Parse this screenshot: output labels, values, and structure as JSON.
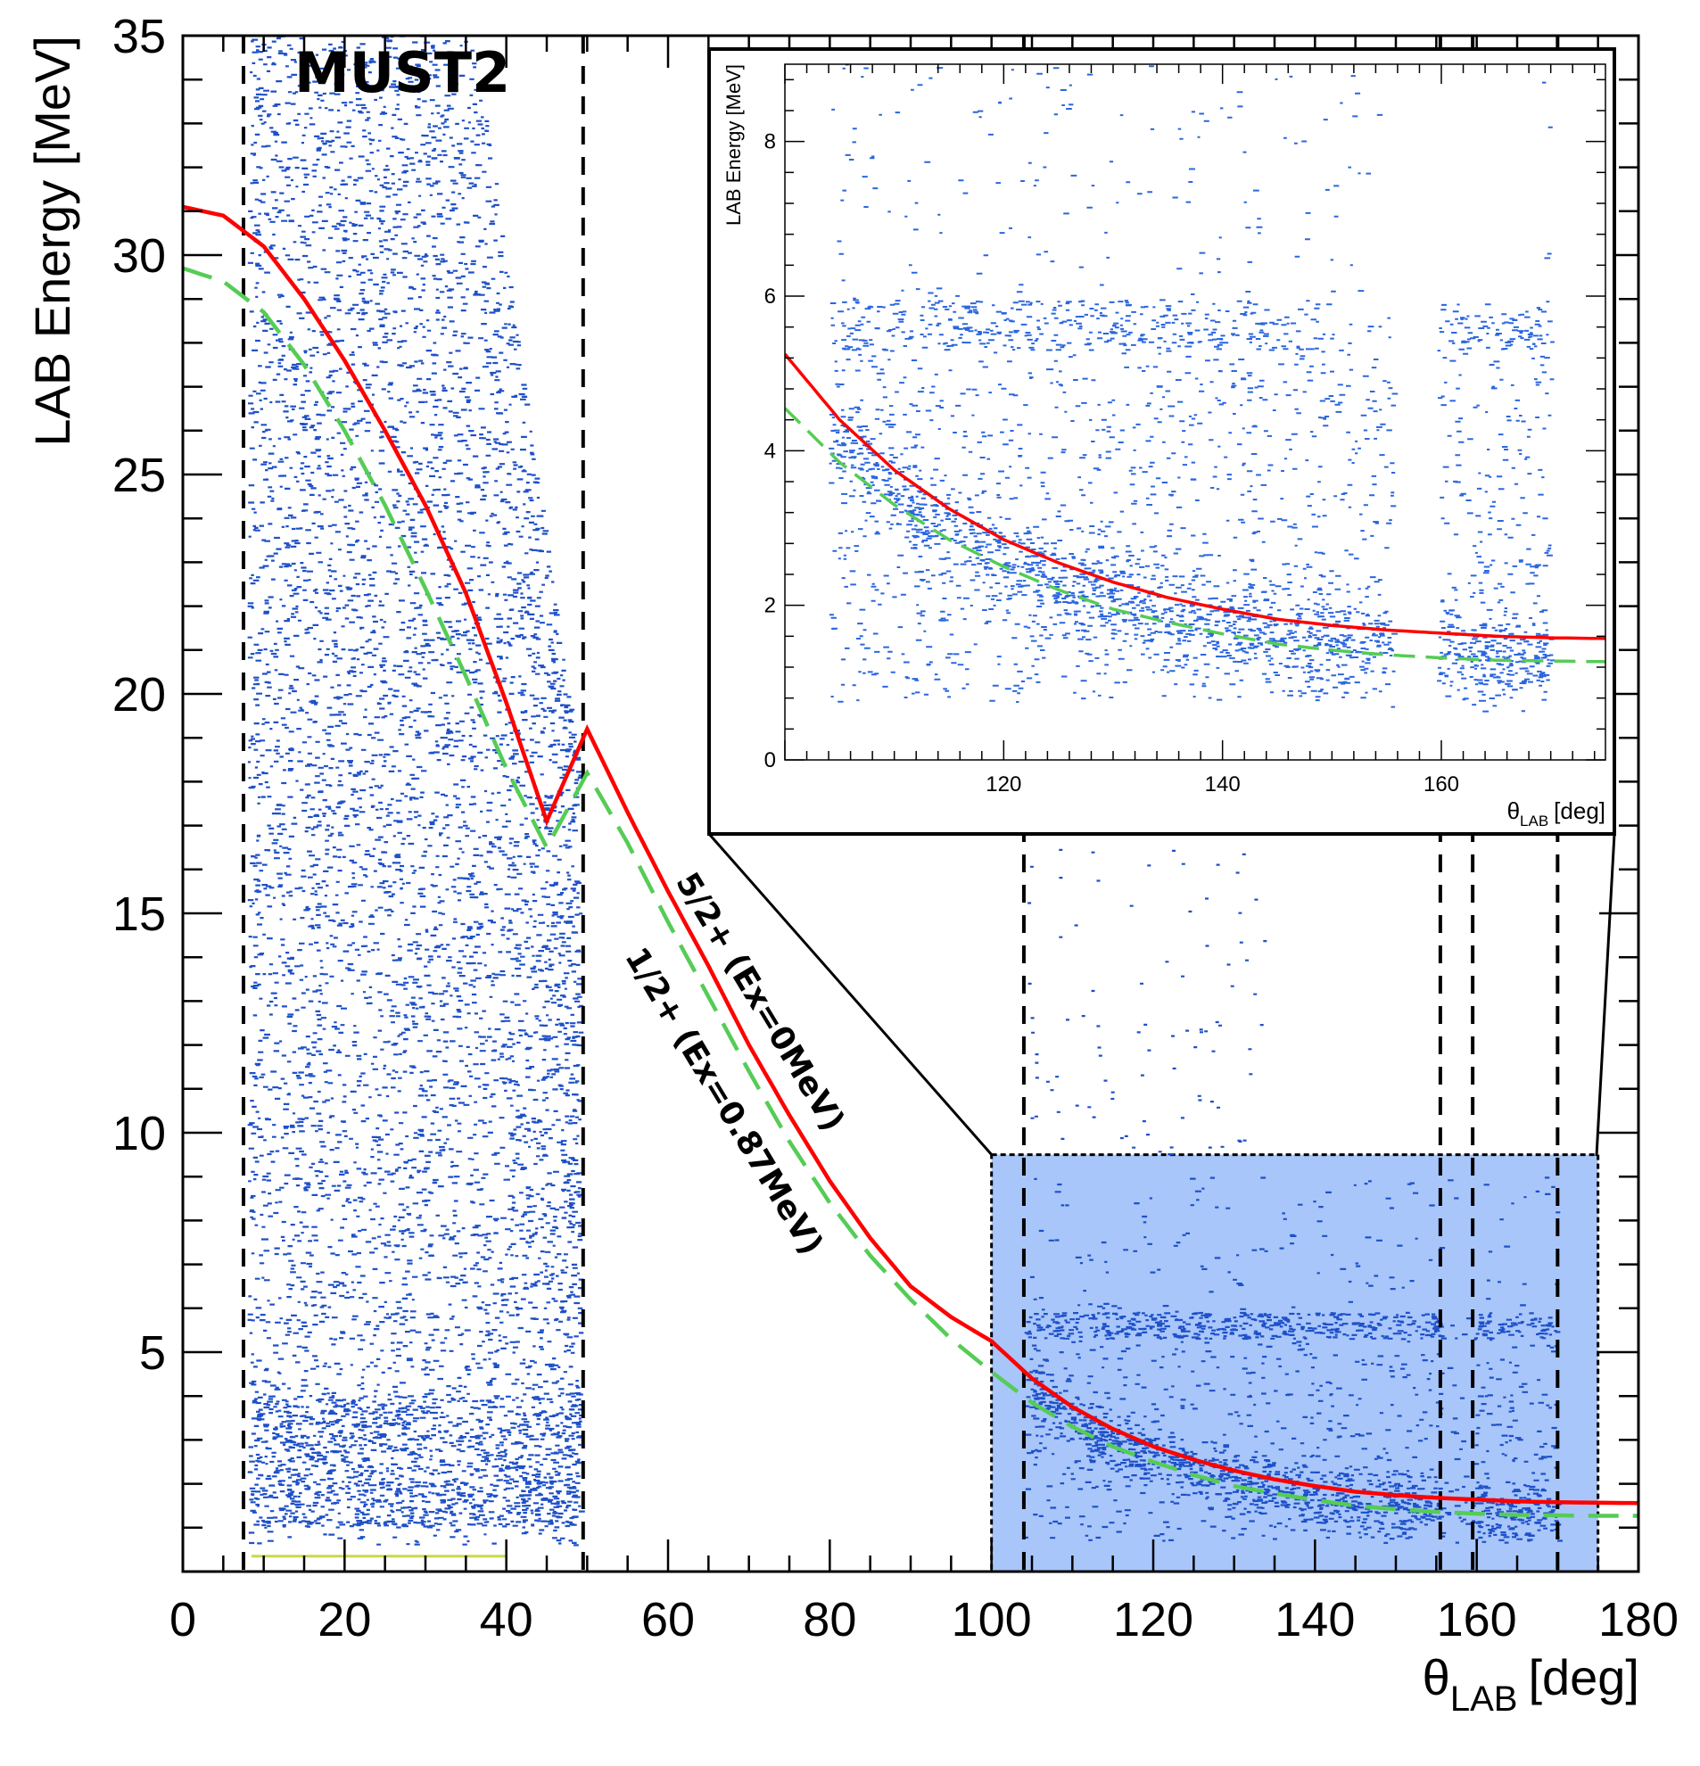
{
  "chart_data": [
    {
      "type": "scatter",
      "subtype": "2d-histogram",
      "title": "",
      "label": "MUST2",
      "xlabel": "θLAB [deg]",
      "xlabel_main": "θ",
      "xlabel_sub": "LAB",
      "xlabel_unit": "[deg]",
      "ylabel": "LAB Energy [MeV]",
      "xlim": [
        0,
        180
      ],
      "ylim": [
        0,
        35
      ],
      "xticks": [
        0,
        20,
        40,
        60,
        80,
        100,
        120,
        140,
        160,
        180
      ],
      "yticks": [
        5,
        10,
        15,
        20,
        25,
        30,
        35
      ],
      "xtick_labels": [
        "0",
        "20",
        "40",
        "60",
        "80",
        "100",
        "120",
        "140",
        "160",
        "180"
      ],
      "ytick_labels": [
        "5",
        "10",
        "15",
        "20",
        "25",
        "30",
        "35"
      ],
      "grid": false,
      "point_color": "#1e50c8",
      "curves": [
        {
          "name": "5/2+ (Ex=0MeV)",
          "color": "#ff0000",
          "style": "solid",
          "x": [
            0,
            5,
            10,
            15,
            20,
            25,
            30,
            35,
            40,
            45,
            50,
            55,
            60,
            65,
            70,
            75,
            80,
            85,
            90,
            95,
            100,
            105,
            110,
            115,
            120,
            125,
            130,
            135,
            140,
            145,
            150,
            155,
            160,
            165,
            170,
            175,
            180
          ],
          "y": [
            31.1,
            30.9,
            30.2,
            29.0,
            27.6,
            26.0,
            24.3,
            22.3,
            19.8,
            17.1,
            19.2,
            17.3,
            15.5,
            13.8,
            12.0,
            10.4,
            8.9,
            7.6,
            6.5,
            5.8,
            5.25,
            4.4,
            3.75,
            3.25,
            2.85,
            2.55,
            2.3,
            2.1,
            1.95,
            1.82,
            1.74,
            1.68,
            1.64,
            1.6,
            1.58,
            1.57,
            1.56
          ]
        },
        {
          "name": "1/2+ (Ex=0.87MeV)",
          "color": "#55cc55",
          "style": "dashed",
          "x": [
            0,
            5,
            10,
            15,
            20,
            25,
            30,
            35,
            40,
            45,
            50,
            55,
            60,
            65,
            70,
            75,
            80,
            85,
            90,
            95,
            100,
            105,
            110,
            115,
            120,
            125,
            130,
            135,
            140,
            145,
            150,
            155,
            160,
            165,
            170,
            175,
            180
          ],
          "y": [
            29.7,
            29.4,
            28.7,
            27.5,
            26.0,
            24.3,
            22.4,
            20.4,
            18.3,
            16.5,
            18.2,
            16.6,
            14.8,
            13.1,
            11.4,
            9.8,
            8.4,
            7.2,
            6.2,
            5.3,
            4.55,
            3.85,
            3.3,
            2.85,
            2.5,
            2.2,
            1.95,
            1.78,
            1.63,
            1.5,
            1.42,
            1.36,
            1.32,
            1.29,
            1.28,
            1.27,
            1.27
          ]
        }
      ],
      "vertical_lines_x": [
        7.5,
        49.5,
        104,
        155.5,
        159.5,
        170
      ],
      "highlight_box": {
        "x": [
          100,
          175
        ],
        "y": [
          0,
          9.5
        ],
        "color": "#a8c6fa"
      },
      "annotations": [
        "5/2+ (Ex=0MeV)",
        "1/2+ (Ex=0.87MeV)"
      ]
    },
    {
      "type": "scatter",
      "subtype": "2d-histogram-inset",
      "title": "",
      "xlabel": "θLAB [deg]",
      "xlabel_main": "θ",
      "xlabel_sub": "LAB",
      "xlabel_unit": "[deg]",
      "ylabel": "LAB Energy [MeV]",
      "xlim": [
        100,
        175
      ],
      "ylim": [
        0,
        9
      ],
      "xticks": [
        120,
        140,
        160
      ],
      "yticks": [
        0,
        2,
        4,
        6,
        8
      ],
      "xtick_labels": [
        "120",
        "140",
        "160"
      ],
      "ytick_labels": [
        "0",
        "2",
        "4",
        "6",
        "8"
      ],
      "grid": false,
      "point_color": "#2a66e0"
    }
  ]
}
